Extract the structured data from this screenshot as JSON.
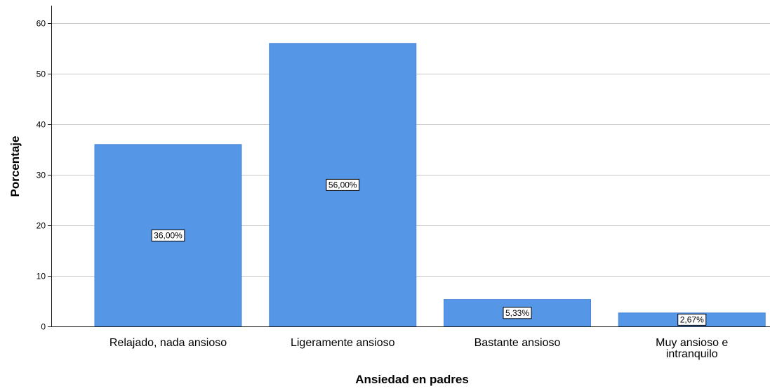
{
  "chart_data": {
    "type": "bar",
    "categories": [
      [
        "Relajado, nada ansioso"
      ],
      [
        "Ligeramente ansioso"
      ],
      [
        "Bastante ansioso"
      ],
      [
        "Muy ansioso e",
        "intranquilo"
      ]
    ],
    "values": [
      36.0,
      56.0,
      5.33,
      2.67
    ],
    "data_labels": [
      "36,00%",
      "56,00%",
      "5,33%",
      "2,67%"
    ],
    "xlabel": "Ansiedad en padres",
    "ylabel": "Porcentaje",
    "ylim": [
      0,
      60
    ],
    "yticks": [
      0,
      10,
      20,
      30,
      40,
      50,
      60
    ],
    "grid": true,
    "bar_color": "#5596e6"
  }
}
